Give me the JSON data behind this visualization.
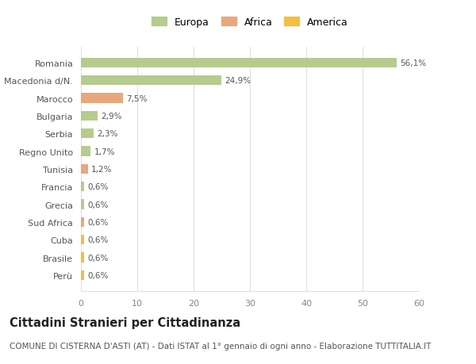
{
  "categories": [
    "Perù",
    "Brasile",
    "Cuba",
    "Sud Africa",
    "Grecia",
    "Francia",
    "Tunisia",
    "Regno Unito",
    "Serbia",
    "Bulgaria",
    "Marocco",
    "Macedonia d/N.",
    "Romania"
  ],
  "values": [
    0.6,
    0.6,
    0.6,
    0.6,
    0.6,
    0.6,
    1.2,
    1.7,
    2.3,
    2.9,
    7.5,
    24.9,
    56.1
  ],
  "labels": [
    "0,6%",
    "0,6%",
    "0,6%",
    "0,6%",
    "0,6%",
    "0,6%",
    "1,2%",
    "1,7%",
    "2,3%",
    "2,9%",
    "7,5%",
    "24,9%",
    "56,1%"
  ],
  "continent": [
    "America",
    "America",
    "America",
    "Africa",
    "Europa",
    "Europa",
    "Africa",
    "Europa",
    "Europa",
    "Europa",
    "Africa",
    "Europa",
    "Europa"
  ],
  "colors": {
    "Europa": "#b5cc8e",
    "Africa": "#e8a87c",
    "America": "#f0c040"
  },
  "legend_order": [
    "Europa",
    "Africa",
    "America"
  ],
  "xlim": [
    0,
    60
  ],
  "xticks": [
    0,
    10,
    20,
    30,
    40,
    50,
    60
  ],
  "title": "Cittadini Stranieri per Cittadinanza",
  "subtitle": "COMUNE DI CISTERNA D'ASTI (AT) - Dati ISTAT al 1° gennaio di ogni anno - Elaborazione TUTTITALIA.IT",
  "background_color": "#ffffff",
  "plot_bg_color": "#ffffff",
  "grid_color": "#e0e0e0",
  "bar_height": 0.55,
  "title_fontsize": 10.5,
  "subtitle_fontsize": 7.5,
  "label_fontsize": 7.5,
  "ytick_fontsize": 8,
  "xtick_fontsize": 8,
  "legend_fontsize": 9
}
